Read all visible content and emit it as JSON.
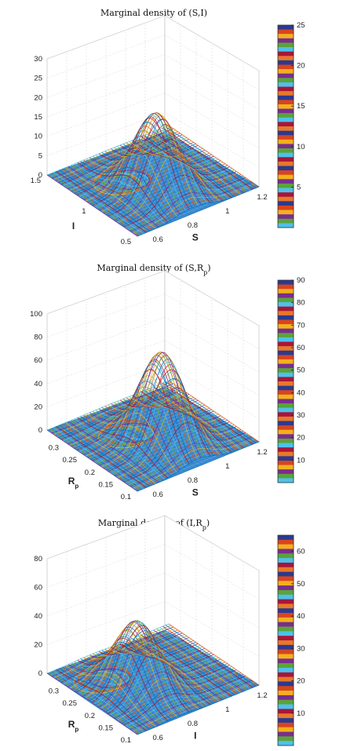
{
  "chart_data": [
    {
      "type": "surface",
      "title": "Marginal density of (S,I)",
      "xlabel": "S",
      "ylabel": "I",
      "zlabel": "",
      "xlim": [
        0.5,
        1.2
      ],
      "ylim": [
        0.5,
        1.5
      ],
      "zlim": [
        0,
        30
      ],
      "xticks": [
        0.6,
        0.8,
        1,
        1.2
      ],
      "yticks": [
        0.5,
        1,
        1.5
      ],
      "zticks": [
        0,
        5,
        10,
        15,
        20,
        25,
        30
      ],
      "peak": {
        "x": 0.82,
        "y": 0.9,
        "z": 19.5
      },
      "colorbar": {
        "ticks": [
          5,
          10,
          15,
          20,
          25
        ],
        "range": [
          0,
          25
        ]
      },
      "grid": true
    },
    {
      "type": "surface",
      "title": "Marginal density of (S,R",
      "title_sub": "p",
      "title_end": ")",
      "xlabel": "S",
      "ylabel": "R",
      "ylabel_sub": "p",
      "zlabel": "",
      "xlim": [
        0.5,
        1.2
      ],
      "ylim": [
        0.1,
        0.35
      ],
      "zlim": [
        0,
        100
      ],
      "xticks": [
        0.6,
        0.8,
        1,
        1.2
      ],
      "yticks": [
        0.1,
        0.15,
        0.2,
        0.25,
        0.3
      ],
      "zticks": [
        0,
        20,
        40,
        60,
        80,
        100
      ],
      "peak": {
        "x": 0.85,
        "y": 0.2,
        "z": 77
      },
      "colorbar": {
        "ticks": [
          10,
          20,
          30,
          40,
          50,
          60,
          70,
          80,
          90
        ],
        "range": [
          0,
          90
        ]
      },
      "grid": true
    },
    {
      "type": "surface",
      "title": "Marginal density of (I,R",
      "title_sub": "p",
      "title_end": ")",
      "xlabel": "I",
      "ylabel": "R",
      "ylabel_sub": "p",
      "zlabel": "",
      "xlim": [
        0.5,
        1.2
      ],
      "ylim": [
        0.1,
        0.35
      ],
      "zlim": [
        0,
        80
      ],
      "xticks": [
        0.6,
        0.8,
        1,
        1.2
      ],
      "yticks": [
        0.1,
        0.15,
        0.2,
        0.25,
        0.3
      ],
      "zticks": [
        0,
        20,
        40,
        60,
        80
      ],
      "peak": {
        "x": 0.75,
        "y": 0.22,
        "z": 46
      },
      "colorbar": {
        "ticks": [
          10,
          20,
          30,
          40,
          50,
          60
        ],
        "range": [
          0,
          65
        ]
      },
      "grid": true
    }
  ]
}
